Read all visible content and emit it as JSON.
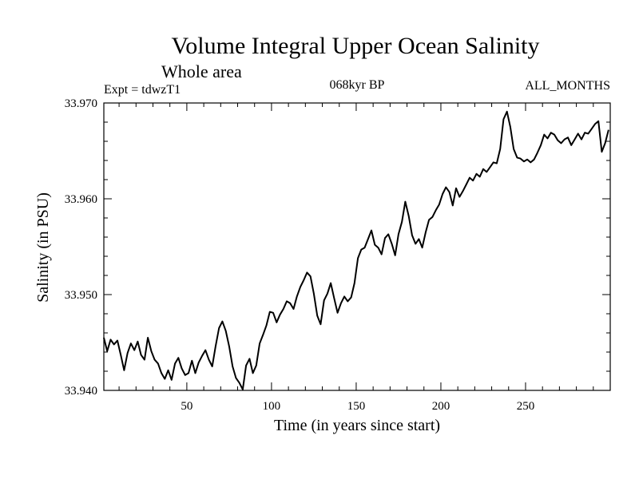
{
  "chart_data": {
    "type": "line",
    "title": "Volume Integral Upper Ocean Salinity",
    "subtitle": "Whole area",
    "expt_label": "Expt = tdwzT1",
    "period_label": "068kyr BP",
    "months_label": "ALL_MONTHS",
    "xlabel": "Time (in years since start)",
    "ylabel": "Salinity (in PSU)",
    "xlim": [
      1,
      300
    ],
    "ylim": [
      33.94,
      33.97
    ],
    "x_ticks": [
      50,
      100,
      150,
      200,
      250
    ],
    "x_tick_labels": [
      "50",
      "100",
      "150",
      "200",
      "250"
    ],
    "y_ticks": [
      33.94,
      33.95,
      33.96,
      33.97
    ],
    "y_tick_labels": [
      "33.940",
      "33.950",
      "33.960",
      "33.970"
    ],
    "series": [
      {
        "name": "Salinity",
        "x": [
          1,
          3,
          5,
          7,
          9,
          11,
          13,
          15,
          17,
          19,
          21,
          23,
          25,
          27,
          29,
          31,
          33,
          35,
          37,
          39,
          41,
          43,
          45,
          47,
          49,
          51,
          53,
          55,
          57,
          59,
          61,
          63,
          65,
          67,
          69,
          71,
          73,
          75,
          77,
          79,
          81,
          83,
          85,
          87,
          89,
          91,
          93,
          95,
          97,
          99,
          101,
          103,
          105,
          107,
          109,
          111,
          113,
          115,
          117,
          119,
          121,
          123,
          125,
          127,
          129,
          131,
          133,
          135,
          137,
          139,
          141,
          143,
          145,
          147,
          149,
          151,
          153,
          155,
          157,
          159,
          161,
          163,
          165,
          167,
          169,
          171,
          173,
          175,
          177,
          179,
          181,
          183,
          185,
          187,
          189,
          191,
          193,
          195,
          197,
          199,
          201,
          203,
          205,
          207,
          209,
          211,
          213,
          215,
          217,
          219,
          221,
          223,
          225,
          227,
          229,
          231,
          233,
          235,
          237,
          239,
          241,
          243,
          245,
          247,
          249,
          251,
          253,
          255,
          257,
          259,
          261,
          263,
          265,
          267,
          269,
          271,
          273,
          275,
          277,
          279,
          281,
          283,
          285,
          287,
          289,
          291,
          293,
          295,
          297,
          299
        ],
        "values": [
          33.9455,
          33.9441,
          33.9453,
          33.9448,
          33.9452,
          33.9437,
          33.9421,
          33.9439,
          33.9449,
          33.9442,
          33.9451,
          33.9437,
          33.9432,
          33.9455,
          33.9441,
          33.9432,
          33.9428,
          33.9418,
          33.9412,
          33.9421,
          33.9411,
          33.9428,
          33.9434,
          33.9423,
          33.9416,
          33.9418,
          33.9431,
          33.9418,
          33.9429,
          33.9436,
          33.9442,
          33.9432,
          33.9425,
          33.9446,
          33.9465,
          33.9472,
          33.9462,
          33.9446,
          33.9425,
          33.9413,
          33.9408,
          33.9401,
          33.9426,
          33.9433,
          33.9418,
          33.9426,
          33.9449,
          33.9458,
          33.9468,
          33.9482,
          33.9481,
          33.9471,
          33.9479,
          33.9485,
          33.9493,
          33.9491,
          33.9485,
          33.9498,
          33.9508,
          33.9515,
          33.9523,
          33.9519,
          33.9501,
          33.9478,
          33.9469,
          33.9494,
          33.9501,
          33.9512,
          33.9496,
          33.9481,
          33.9491,
          33.9498,
          33.9493,
          33.9497,
          33.9512,
          33.9538,
          33.9547,
          33.9549,
          33.9558,
          33.9567,
          33.9552,
          33.9549,
          33.9542,
          33.9559,
          33.9563,
          33.9553,
          33.9541,
          33.9563,
          33.9576,
          33.9597,
          33.9582,
          33.9562,
          33.9553,
          33.9558,
          33.9549,
          33.9565,
          33.9578,
          33.9581,
          33.9588,
          33.9594,
          33.9605,
          33.9612,
          33.9607,
          33.9593,
          33.9611,
          33.9602,
          33.9608,
          33.9615,
          33.9622,
          33.9619,
          33.9626,
          33.9623,
          33.9631,
          33.9628,
          33.9633,
          33.9638,
          33.9637,
          33.9652,
          33.9683,
          33.9691,
          33.9675,
          33.9652,
          33.9643,
          33.9642,
          33.9639,
          33.9641,
          33.9638,
          33.9641,
          33.9648,
          33.9656,
          33.9667,
          33.9663,
          33.9669,
          33.9667,
          33.9661,
          33.9658,
          33.9662,
          33.9664,
          33.9656,
          33.9662,
          33.9668,
          33.9662,
          33.9669,
          33.9668,
          33.9673,
          33.9678,
          33.9681,
          33.9649,
          33.9658,
          33.9672
        ]
      }
    ]
  }
}
